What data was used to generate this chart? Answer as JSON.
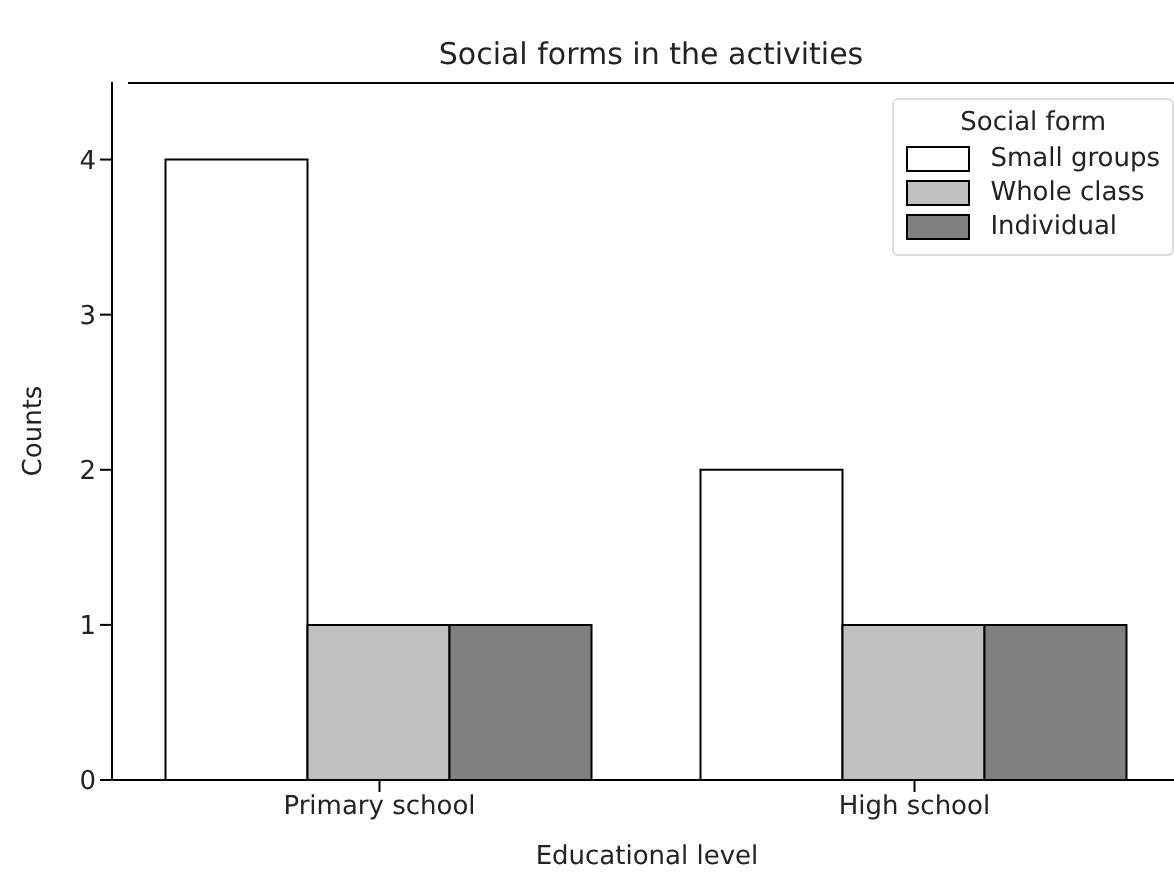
{
  "chart_data": {
    "type": "bar",
    "title": "Social forms in the activities",
    "xlabel": "Educational level",
    "ylabel": "Counts",
    "legend_title": "Social form",
    "categories": [
      "Primary school",
      "High school"
    ],
    "series": [
      {
        "name": "Small groups",
        "color": "#ffffff",
        "values": [
          4,
          2
        ]
      },
      {
        "name": "Whole class",
        "color": "#c0c0c0",
        "values": [
          1,
          1
        ]
      },
      {
        "name": "Individual",
        "color": "#808080",
        "values": [
          1,
          1
        ]
      }
    ],
    "ylim": [
      0,
      4.5
    ],
    "yticks": [
      0,
      1,
      2,
      3,
      4
    ],
    "grid": false,
    "legend": "top right"
  }
}
